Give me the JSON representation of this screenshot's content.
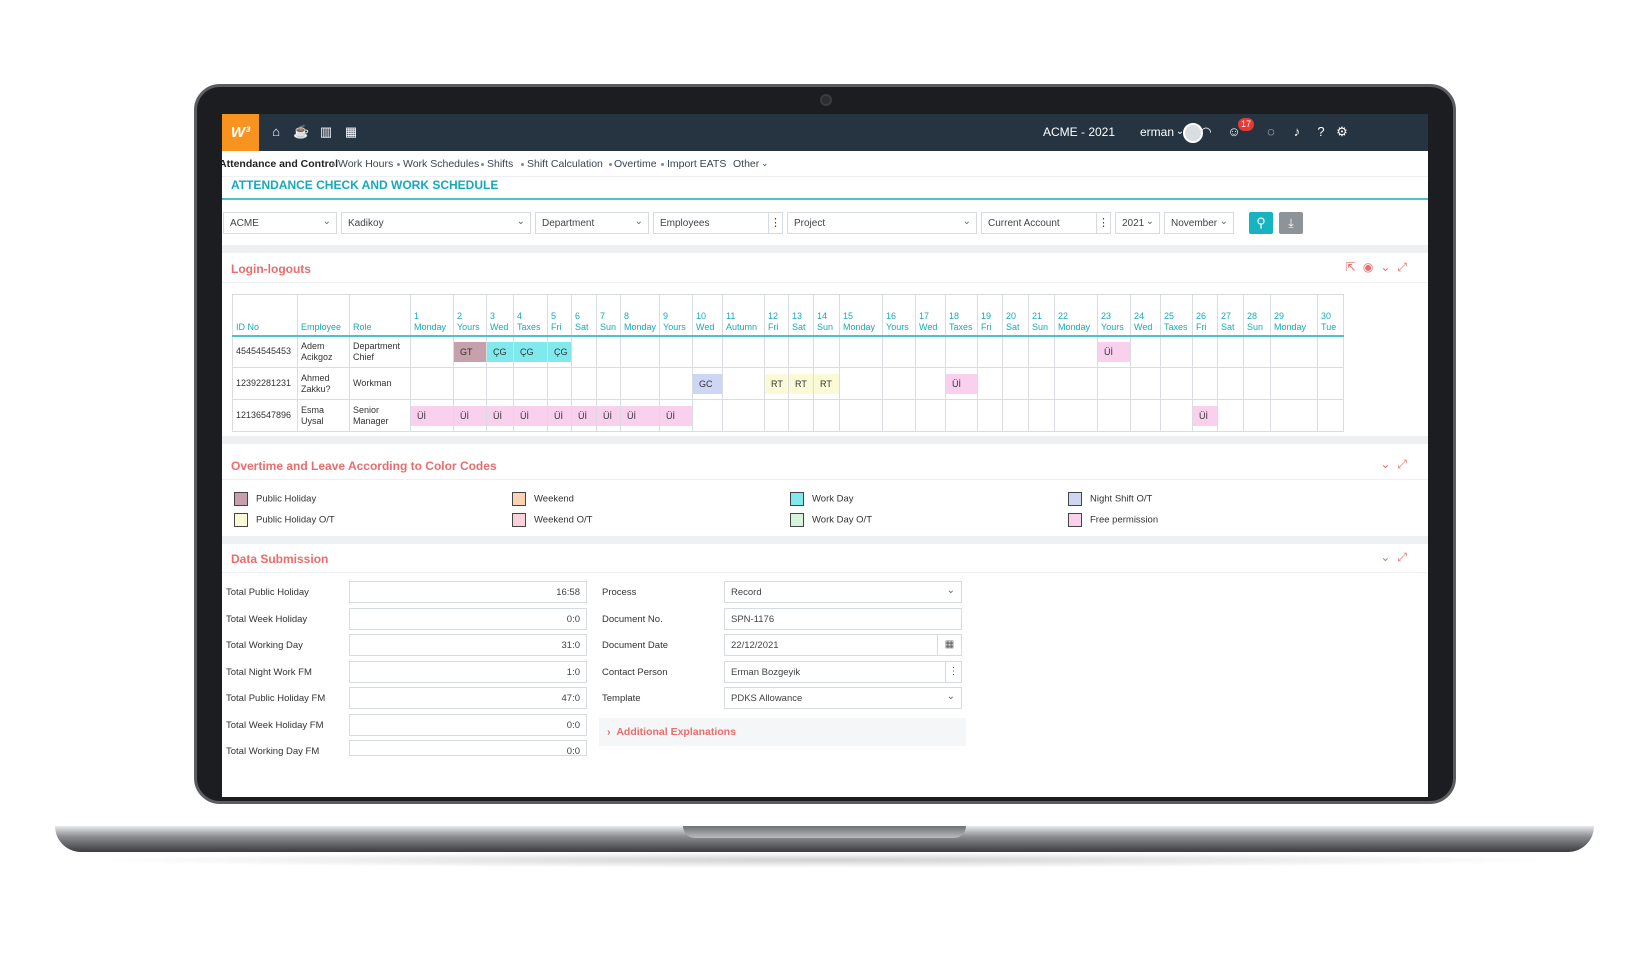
{
  "topbar": {
    "logo": "W³",
    "company": "ACME - 2021",
    "user": "erman",
    "notification_count": "17"
  },
  "nav": {
    "items": [
      "Attendance and Control",
      "Work Hours",
      "Work Schedules",
      "Shifts",
      "Shift Calculation",
      "Overtime",
      "Import EATS",
      "Other"
    ]
  },
  "page_title": "ATTENDANCE CHECK AND WORK SCHEDULE",
  "filters": {
    "company": "ACME",
    "branch": "Kadikoy",
    "department": "Department",
    "employees": "Employees",
    "project": "Project",
    "account": "Current Account",
    "year": "2021",
    "month": "November"
  },
  "login_section": {
    "title": "Login-logouts",
    "headers": {
      "id": "ID No",
      "employee": "Employee",
      "role": "Role"
    },
    "days": [
      [
        "1",
        "Monday"
      ],
      [
        "2",
        "Yours"
      ],
      [
        "3",
        "Wed"
      ],
      [
        "4",
        "Taxes"
      ],
      [
        "5",
        "Fri"
      ],
      [
        "6",
        "Sat"
      ],
      [
        "7",
        "Sun"
      ],
      [
        "8",
        "Monday"
      ],
      [
        "9",
        "Yours"
      ],
      [
        "10",
        "Wed"
      ],
      [
        "11",
        "Autumn"
      ],
      [
        "12",
        "Fri"
      ],
      [
        "13",
        "Sat"
      ],
      [
        "14",
        "Sun"
      ],
      [
        "15",
        "Monday"
      ],
      [
        "16",
        "Yours"
      ],
      [
        "17",
        "Wed"
      ],
      [
        "18",
        "Taxes"
      ],
      [
        "19",
        "Fri"
      ],
      [
        "20",
        "Sat"
      ],
      [
        "21",
        "Sun"
      ],
      [
        "22",
        "Monday"
      ],
      [
        "23",
        "Yours"
      ],
      [
        "24",
        "Wed"
      ],
      [
        "25",
        "Taxes"
      ],
      [
        "26",
        "Fri"
      ],
      [
        "27",
        "Sat"
      ],
      [
        "28",
        "Sun"
      ],
      [
        "29",
        "Monday"
      ],
      [
        "30",
        "Tue"
      ]
    ],
    "rows": [
      {
        "id": "45454545453",
        "employee": "Adem Acikgoz",
        "role": "Department Chief",
        "cells": {
          "2": [
            "GT",
            "pub"
          ],
          "3": [
            "ÇG",
            "work"
          ],
          "4": [
            "ÇG",
            "work"
          ],
          "5": [
            "ÇG",
            "work"
          ],
          "23": [
            "Üİ",
            "free"
          ]
        }
      },
      {
        "id": "12392281231",
        "employee": "Ahmed Zakku?",
        "role": "Workman",
        "cells": {
          "10": [
            "GC",
            "night"
          ],
          "12": [
            "RT",
            "pubot"
          ],
          "13": [
            "RT",
            "pubot"
          ],
          "14": [
            "RT",
            "pubot"
          ],
          "18": [
            "Üİ",
            "free"
          ]
        }
      },
      {
        "id": "12136547896",
        "employee": "Esma Uysal",
        "role": "Senior Manager",
        "cells": {
          "1": [
            "Üİ",
            "free"
          ],
          "2": [
            "Üİ",
            "free"
          ],
          "3": [
            "Üİ",
            "free"
          ],
          "4": [
            "Üİ",
            "free"
          ],
          "5": [
            "Üİ",
            "free"
          ],
          "6": [
            "Üİ",
            "free"
          ],
          "7": [
            "Üİ",
            "free"
          ],
          "8": [
            "Üİ",
            "free"
          ],
          "9": [
            "Üİ",
            "free"
          ],
          "26": [
            "Üİ",
            "free"
          ]
        }
      }
    ]
  },
  "legend_section": {
    "title": "Overtime and Leave According to Color Codes",
    "items": [
      {
        "label": "Public Holiday",
        "color": "#c6a0ab"
      },
      {
        "label": "Public Holiday O/T",
        "color": "#fbfad6"
      },
      {
        "label": "Weekend",
        "color": "#fbd3b4"
      },
      {
        "label": "Weekend O/T",
        "color": "#f9d1dc"
      },
      {
        "label": "Work Day",
        "color": "#7fe9ee"
      },
      {
        "label": "Work Day O/T",
        "color": "#d4f5dc"
      },
      {
        "label": "Night Shift O/T",
        "color": "#cdd6f5"
      },
      {
        "label": "Free permission",
        "color": "#f9d1ef"
      }
    ]
  },
  "data_section": {
    "title": "Data Submission",
    "totals": [
      {
        "label": "Total Public Holiday",
        "value": "16:58"
      },
      {
        "label": "Total Week Holiday",
        "value": "0:0"
      },
      {
        "label": "Total Working Day",
        "value": "31:0"
      },
      {
        "label": "Total Night Work FM",
        "value": "1:0"
      },
      {
        "label": "Total Public Holiday FM",
        "value": "47:0"
      },
      {
        "label": "Total Week Holiday FM",
        "value": "0:0"
      },
      {
        "label": "Total Working Day FM",
        "value": "0:0"
      }
    ],
    "process_label": "Process",
    "process_value": "Record",
    "docno_label": "Document No.",
    "docno_value": "SPN-1176",
    "docdate_label": "Document Date",
    "docdate_value": "22/12/2021",
    "contact_label": "Contact Person",
    "contact_value": "Erman Bozgeyik",
    "template_label": "Template",
    "template_value": "PDKS Allowance",
    "additional": "Additional Explanations"
  }
}
